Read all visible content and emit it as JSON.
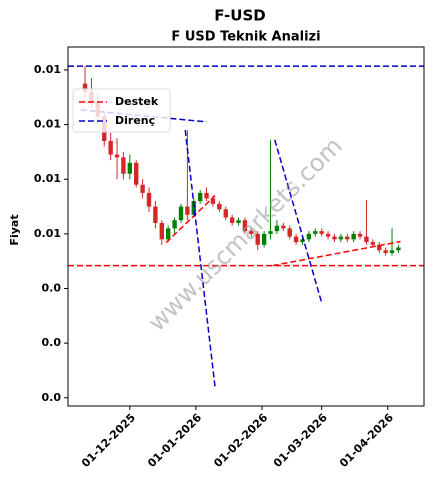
{
  "chart_data": {
    "type": "candlestick",
    "title": "F-USD",
    "subtitle": "F USD Teknik Analizi",
    "ylabel": "Fiyat",
    "watermark": "www.uscmarkets.com",
    "up_color": "#008000",
    "down_color": "#d62728",
    "legend": "upper left",
    "xlim": [
      "2025-11-02",
      "2026-04-18"
    ],
    "xticks": [
      {
        "value": "2025-12-01",
        "label": "01-12-2025"
      },
      {
        "value": "2026-01-01",
        "label": "01-01-2026"
      },
      {
        "value": "2026-02-01",
        "label": "01-02-2026"
      },
      {
        "value": "2026-03-01",
        "label": "01-03-2026"
      },
      {
        "value": "2026-04-01",
        "label": "01-04-2026"
      }
    ],
    "ylim": [
      0.00585,
      0.01242
    ],
    "yticks": [
      {
        "value": 0.012,
        "label": "0.01"
      },
      {
        "value": 0.011,
        "label": "0.01"
      },
      {
        "value": 0.01,
        "label": "0.01"
      },
      {
        "value": 0.009,
        "label": "0.01"
      },
      {
        "value": 0.008,
        "label": "0.0"
      },
      {
        "value": 0.007,
        "label": "0.0"
      },
      {
        "value": 0.006,
        "label": "0.0"
      }
    ],
    "x": [
      "2025-11-10",
      "2025-11-13",
      "2025-11-16",
      "2025-11-19",
      "2025-11-22",
      "2025-11-25",
      "2025-11-28",
      "2025-12-01",
      "2025-12-04",
      "2025-12-07",
      "2025-12-10",
      "2025-12-13",
      "2025-12-16",
      "2025-12-19",
      "2025-12-22",
      "2025-12-25",
      "2025-12-28",
      "2025-12-31",
      "2026-01-03",
      "2026-01-06",
      "2026-01-09",
      "2026-01-12",
      "2026-01-15",
      "2026-01-18",
      "2026-01-21",
      "2026-01-24",
      "2026-01-27",
      "2026-01-30",
      "2026-02-02",
      "2026-02-05",
      "2026-02-08",
      "2026-02-11",
      "2026-02-14",
      "2026-02-17",
      "2026-02-20",
      "2026-02-23",
      "2026-02-26",
      "2026-03-01",
      "2026-03-04",
      "2026-03-07",
      "2026-03-10",
      "2026-03-13",
      "2026-03-16",
      "2026-03-19",
      "2026-03-22",
      "2026-03-25",
      "2026-03-28",
      "2026-03-31",
      "2026-04-03",
      "2026-04-06"
    ],
    "open": [
      0.01175,
      0.0116,
      0.0114,
      0.01115,
      0.0107,
      0.01045,
      0.0104,
      0.0101,
      0.0103,
      0.0099,
      0.00975,
      0.0095,
      0.0092,
      0.0089,
      0.0091,
      0.00925,
      0.0095,
      0.00935,
      0.0096,
      0.00975,
      0.00965,
      0.00955,
      0.00945,
      0.0093,
      0.0092,
      0.00925,
      0.00905,
      0.009,
      0.0088,
      0.009,
      0.00905,
      0.00915,
      0.0091,
      0.00895,
      0.00885,
      0.0089,
      0.009,
      0.00905,
      0.009,
      0.00895,
      0.0089,
      0.00895,
      0.0089,
      0.009,
      0.00895,
      0.00885,
      0.0088,
      0.0087,
      0.00865,
      0.0087
    ],
    "high": [
      0.01207,
      0.01185,
      0.0116,
      0.01125,
      0.01085,
      0.01075,
      0.0105,
      0.01045,
      0.01035,
      0.01,
      0.00985,
      0.0096,
      0.00925,
      0.00915,
      0.0093,
      0.00955,
      0.0109,
      0.00965,
      0.0098,
      0.00985,
      0.0097,
      0.0096,
      0.0095,
      0.00935,
      0.0093,
      0.0093,
      0.0091,
      0.00905,
      0.00905,
      0.01072,
      0.00925,
      0.0092,
      0.00915,
      0.009,
      0.00895,
      0.00905,
      0.0091,
      0.0091,
      0.00905,
      0.009,
      0.009,
      0.009,
      0.00905,
      0.00905,
      0.00962,
      0.0089,
      0.00885,
      0.00875,
      0.0091,
      0.0088
    ],
    "low": [
      0.0115,
      0.0113,
      0.011,
      0.0106,
      0.01035,
      0.01,
      0.01,
      0.01,
      0.00985,
      0.00965,
      0.0094,
      0.0091,
      0.0088,
      0.00885,
      0.009,
      0.0092,
      0.00925,
      0.0093,
      0.00955,
      0.0096,
      0.0095,
      0.0094,
      0.00925,
      0.00915,
      0.00915,
      0.009,
      0.00895,
      0.0087,
      0.00875,
      0.0089,
      0.009,
      0.00905,
      0.0089,
      0.0088,
      0.0088,
      0.00885,
      0.00895,
      0.00895,
      0.0089,
      0.00885,
      0.00885,
      0.00885,
      0.00885,
      0.0089,
      0.0088,
      0.00875,
      0.00865,
      0.0086,
      0.0086,
      0.00865
    ],
    "close": [
      0.0116,
      0.0114,
      0.01115,
      0.0107,
      0.01045,
      0.0104,
      0.0101,
      0.0103,
      0.0099,
      0.00975,
      0.0095,
      0.0092,
      0.0089,
      0.0091,
      0.00925,
      0.0095,
      0.00935,
      0.0096,
      0.00975,
      0.00965,
      0.00955,
      0.00945,
      0.0093,
      0.0092,
      0.00925,
      0.00905,
      0.009,
      0.0088,
      0.009,
      0.00905,
      0.00915,
      0.0091,
      0.00895,
      0.00885,
      0.0089,
      0.009,
      0.00905,
      0.009,
      0.00895,
      0.0089,
      0.00895,
      0.0089,
      0.009,
      0.00895,
      0.00885,
      0.0088,
      0.0087,
      0.00865,
      0.0087,
      0.00875
    ],
    "levels": [
      {
        "name": "Destek",
        "color": "#ff0000",
        "value": 0.00842,
        "trends": [
          {
            "x": [
              "2025-12-18",
              "2026-01-10"
            ],
            "y": [
              0.00884,
              0.0097
            ]
          },
          {
            "x": [
              "2026-02-06",
              "2026-04-07"
            ],
            "y": [
              0.00842,
              0.00886
            ]
          }
        ]
      },
      {
        "name": "Direnç",
        "color": "#0000cd",
        "value": 0.01207,
        "trends": [
          {
            "x": [
              "2025-11-08",
              "2026-01-06"
            ],
            "y": [
              0.01127,
              0.01105
            ]
          },
          {
            "x": [
              "2025-12-27",
              "2026-01-10"
            ],
            "y": [
              0.0109,
              0.00619
            ]
          },
          {
            "x": [
              "2026-02-07",
              "2026-03-01"
            ],
            "y": [
              0.01072,
              0.00774
            ]
          }
        ]
      }
    ]
  }
}
